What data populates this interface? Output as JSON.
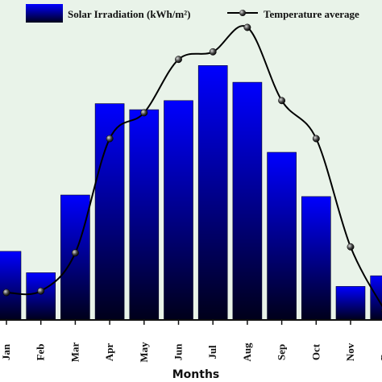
{
  "chart_data": {
    "type": "bar",
    "categories": [
      "Jan",
      "Feb",
      "Mar",
      "Apr",
      "May",
      "Jun",
      "Jul",
      "Aug",
      "Sep",
      "Oct",
      "Nov",
      "Dec"
    ],
    "series": [
      {
        "name": "Solar Irradiation (kWh/m²)",
        "kind": "bar",
        "values": [
          2.25,
          1.55,
          4.1,
          7.1,
          6.9,
          7.2,
          8.35,
          7.8,
          5.5,
          4.05,
          1.1,
          1.45
        ]
      },
      {
        "name": "Temperature average",
        "kind": "line",
        "values": [
          0.9,
          0.95,
          2.2,
          5.95,
          6.8,
          8.55,
          8.8,
          9.6,
          7.2,
          5.95,
          2.4,
          0.3
        ]
      }
    ],
    "xlabel": "Months",
    "ylabel": "",
    "ylim": [
      0,
      10.5
    ],
    "grid": false,
    "legend": "top",
    "colors": {
      "bar_top": "#0000ff",
      "bar_bottom": "#00001a",
      "line": "#000000",
      "background": "#e9f3e9"
    }
  }
}
